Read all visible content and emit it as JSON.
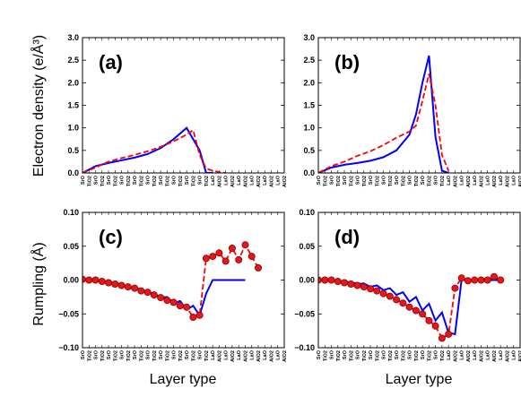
{
  "colors": {
    "solid": "#0000ff",
    "dashed": "#ff0000",
    "marker_fill": "#e8151b",
    "marker_edge": "#8b0000",
    "axis": "#000000"
  },
  "layers": [
    "SrO",
    "TiO2",
    "SrO",
    "TiO2",
    "SrO",
    "TiO2",
    "SrO",
    "TiO2",
    "SrO",
    "TiO2",
    "SrO",
    "TiO2",
    "SrO",
    "TiO2",
    "SrO",
    "TiO2",
    "SrO",
    "TiO2",
    "SrO",
    "TiO2",
    "LaO",
    "AlO2",
    "LaO",
    "AlO2",
    "LaO",
    "AlO2",
    "LaO",
    "AlO2",
    "LaO",
    "AlO2",
    "LaO",
    "AlO2"
  ],
  "xlabel": "Layer type",
  "chart_data": [
    {
      "type": "line",
      "panel": "(a)",
      "ylabel": "Electron density (e/Å³)",
      "ylim": [
        0,
        3.0
      ],
      "yticks": [
        "0.0",
        "0.5",
        "1.0",
        "1.5",
        "2.0",
        "2.5",
        "3.0"
      ],
      "series": [
        {
          "style": "solid",
          "x": [
            0,
            2,
            4,
            6,
            8,
            10,
            12,
            14,
            16,
            18,
            19,
            20
          ],
          "values": [
            0,
            0.15,
            0.22,
            0.28,
            0.34,
            0.42,
            0.55,
            0.75,
            1.0,
            0.5,
            0.0,
            0.0
          ]
        },
        {
          "style": "dashed",
          "x": [
            0,
            2,
            4,
            6,
            8,
            10,
            12,
            14,
            16,
            17,
            18,
            19,
            20,
            21,
            22
          ],
          "values": [
            0,
            0.12,
            0.25,
            0.33,
            0.4,
            0.48,
            0.58,
            0.7,
            0.85,
            0.95,
            0.4,
            0.1,
            0.05,
            0.02,
            0.0
          ]
        }
      ]
    },
    {
      "type": "line",
      "panel": "(b)",
      "ylabel": "",
      "ylim": [
        0,
        3.0
      ],
      "yticks": [
        "0.0",
        "0.5",
        "1.0",
        "1.5",
        "2.0",
        "2.5",
        "3.0"
      ],
      "series": [
        {
          "style": "solid",
          "x": [
            0,
            2,
            4,
            6,
            8,
            10,
            12,
            14,
            15,
            16,
            17,
            18,
            19,
            20
          ],
          "values": [
            0,
            0.12,
            0.18,
            0.22,
            0.27,
            0.35,
            0.5,
            0.85,
            1.3,
            2.0,
            2.6,
            0.8,
            0.05,
            0.0
          ]
        },
        {
          "style": "dashed",
          "x": [
            0,
            2,
            4,
            6,
            8,
            10,
            12,
            14,
            15,
            16,
            17,
            18,
            19,
            20
          ],
          "values": [
            0,
            0.15,
            0.25,
            0.38,
            0.48,
            0.62,
            0.78,
            0.92,
            1.05,
            1.6,
            2.2,
            1.5,
            0.4,
            0.05
          ]
        }
      ]
    },
    {
      "type": "line",
      "panel": "(c)",
      "ylabel": "Rumpling (Å)",
      "ylim": [
        -0.1,
        0.1
      ],
      "yticks": [
        "−0.10",
        "−0.05",
        "0.00",
        "0.05",
        "0.10"
      ],
      "series": [
        {
          "style": "solid",
          "x": [
            0,
            1,
            2,
            3,
            4,
            5,
            6,
            7,
            8,
            9,
            10,
            11,
            12,
            13,
            14,
            15,
            16,
            17,
            18,
            19,
            20,
            21,
            22,
            23,
            24,
            25
          ],
          "values": [
            0,
            0,
            0,
            -0.001,
            -0.003,
            -0.004,
            -0.007,
            -0.009,
            -0.012,
            -0.014,
            -0.018,
            -0.02,
            -0.026,
            -0.025,
            -0.034,
            -0.031,
            -0.044,
            -0.038,
            -0.052,
            -0.02,
            0.0,
            0.0,
            0.0,
            0.0,
            0.0,
            0.0
          ]
        },
        {
          "style": "dashed-markers",
          "x": [
            0,
            1,
            2,
            3,
            4,
            5,
            6,
            7,
            8,
            9,
            10,
            11,
            12,
            13,
            14,
            15,
            16,
            17,
            18,
            19,
            20,
            21,
            22,
            23,
            24,
            25,
            26,
            27
          ],
          "values": [
            0.001,
            0.0,
            0.0,
            -0.002,
            -0.004,
            -0.006,
            -0.008,
            -0.01,
            -0.012,
            -0.016,
            -0.018,
            -0.022,
            -0.026,
            -0.03,
            -0.033,
            -0.038,
            -0.04,
            -0.055,
            -0.052,
            0.032,
            0.035,
            0.04,
            0.028,
            0.047,
            0.03,
            0.052,
            0.035,
            0.018
          ]
        }
      ]
    },
    {
      "type": "line",
      "panel": "(d)",
      "ylabel": "",
      "ylim": [
        -0.1,
        0.1
      ],
      "yticks": [
        "−0.10",
        "−0.05",
        "0.00",
        "0.05",
        "0.10"
      ],
      "series": [
        {
          "style": "solid",
          "x": [
            0,
            1,
            2,
            3,
            4,
            5,
            6,
            7,
            8,
            9,
            10,
            11,
            12,
            13,
            14,
            15,
            16,
            17,
            18,
            19,
            20,
            21,
            22,
            23,
            24,
            25,
            26,
            27,
            28
          ],
          "values": [
            0,
            0,
            0,
            -0.002,
            -0.003,
            -0.003,
            -0.006,
            -0.005,
            -0.01,
            -0.008,
            -0.015,
            -0.012,
            -0.022,
            -0.018,
            -0.032,
            -0.025,
            -0.045,
            -0.035,
            -0.06,
            -0.048,
            -0.078,
            -0.08,
            0.0,
            0.0,
            0.0,
            0.0,
            0.0,
            0.0,
            0.0
          ]
        },
        {
          "style": "dashed-markers",
          "x": [
            0,
            1,
            2,
            3,
            4,
            5,
            6,
            7,
            8,
            9,
            10,
            11,
            12,
            13,
            14,
            15,
            16,
            17,
            18,
            19,
            20,
            21,
            22,
            23,
            24,
            25,
            26,
            27,
            28
          ],
          "values": [
            0.0,
            0.0,
            0.0,
            -0.002,
            -0.004,
            -0.006,
            -0.008,
            -0.01,
            -0.013,
            -0.016,
            -0.02,
            -0.024,
            -0.029,
            -0.034,
            -0.04,
            -0.045,
            -0.05,
            -0.06,
            -0.068,
            -0.086,
            -0.08,
            -0.012,
            0.003,
            -0.001,
            0.0,
            0.0,
            0.0,
            0.005,
            0.0
          ]
        }
      ]
    }
  ]
}
